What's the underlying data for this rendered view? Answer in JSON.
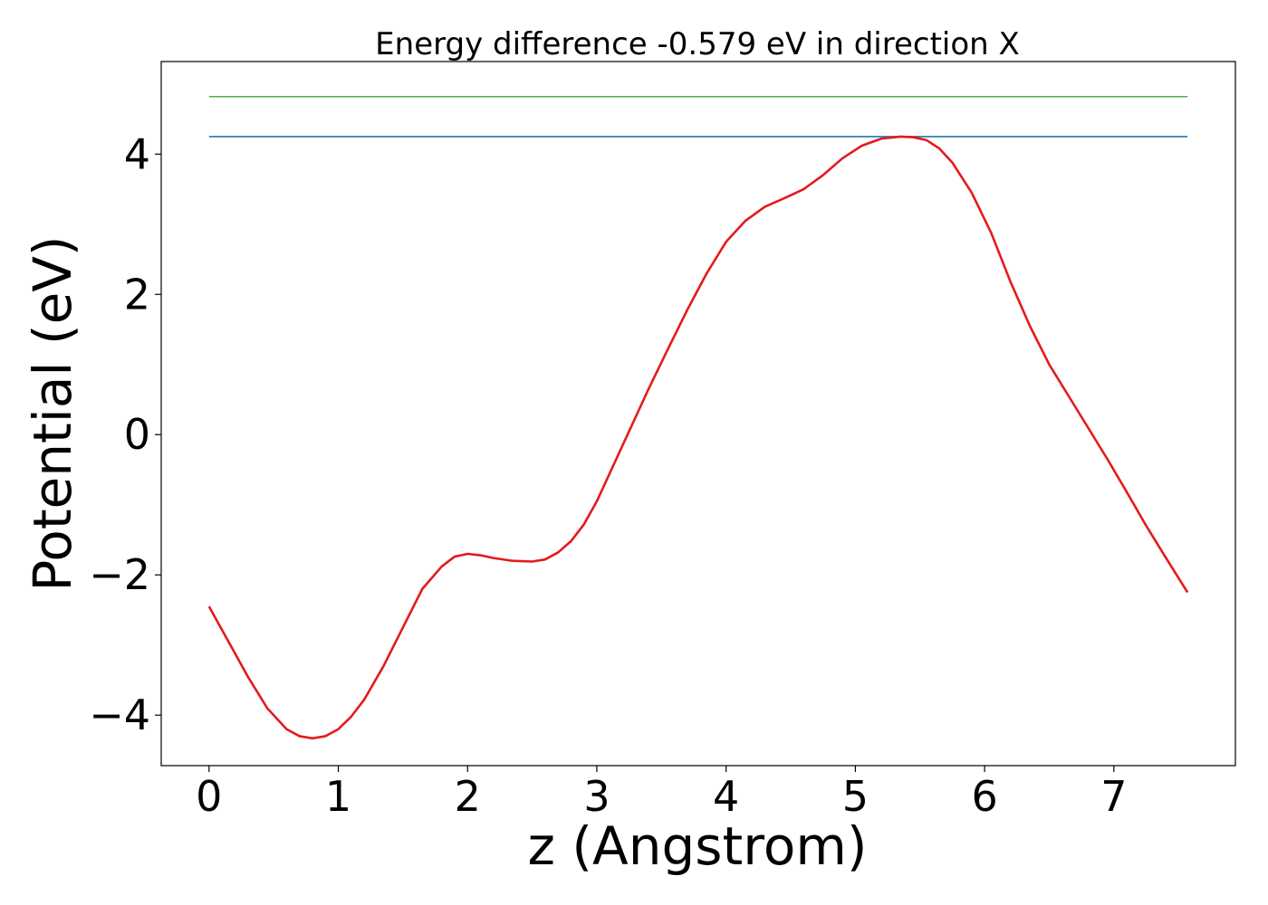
{
  "chart_data": {
    "type": "line",
    "title": "Energy difference -0.579 eV in direction X",
    "xlabel": "z (Angstrom)",
    "ylabel": "Potential (eV)",
    "xlim": [
      -0.37,
      7.94
    ],
    "ylim": [
      -4.72,
      5.32
    ],
    "x_ticks": [
      0,
      1,
      2,
      3,
      4,
      5,
      6,
      7
    ],
    "x_tick_labels": [
      "0",
      "1",
      "2",
      "3",
      "4",
      "5",
      "6",
      "7"
    ],
    "y_ticks": [
      -4,
      -2,
      0,
      2,
      4
    ],
    "y_tick_labels": [
      "−4",
      "−2",
      "0",
      "2",
      "4"
    ],
    "grid": false,
    "series": [
      {
        "color": "#e41a1c",
        "x": [
          0,
          0.15,
          0.3,
          0.45,
          0.6,
          0.7,
          0.8,
          0.9,
          1.0,
          1.1,
          1.2,
          1.35,
          1.5,
          1.65,
          1.8,
          1.9,
          2.0,
          2.1,
          2.2,
          2.35,
          2.5,
          2.6,
          2.7,
          2.8,
          2.9,
          3.0,
          3.1,
          3.25,
          3.4,
          3.55,
          3.7,
          3.85,
          4.0,
          4.15,
          4.3,
          4.45,
          4.6,
          4.75,
          4.9,
          5.05,
          5.2,
          5.35,
          5.45,
          5.55,
          5.65,
          5.75,
          5.9,
          6.05,
          6.2,
          6.35,
          6.5,
          6.65,
          6.8,
          6.95,
          7.1,
          7.25,
          7.4,
          7.57
        ],
        "y": [
          -2.45,
          -2.95,
          -3.45,
          -3.9,
          -4.2,
          -4.3,
          -4.33,
          -4.3,
          -4.2,
          -4.02,
          -3.78,
          -3.3,
          -2.75,
          -2.2,
          -1.88,
          -1.74,
          -1.7,
          -1.72,
          -1.76,
          -1.8,
          -1.81,
          -1.78,
          -1.68,
          -1.52,
          -1.28,
          -0.95,
          -0.55,
          0.05,
          0.65,
          1.22,
          1.78,
          2.3,
          2.75,
          3.05,
          3.25,
          3.37,
          3.5,
          3.7,
          3.94,
          4.12,
          4.22,
          4.25,
          4.24,
          4.2,
          4.08,
          3.88,
          3.45,
          2.88,
          2.18,
          1.55,
          1.0,
          0.55,
          0.1,
          -0.35,
          -0.82,
          -1.3,
          -1.75,
          -2.25
        ]
      },
      {
        "color": "#1f77b4",
        "x": [
          0,
          7.57
        ],
        "y": [
          4.25,
          4.25
        ]
      },
      {
        "color": "#4daf4a",
        "x": [
          0,
          7.57
        ],
        "y": [
          4.82,
          4.82
        ]
      }
    ]
  }
}
